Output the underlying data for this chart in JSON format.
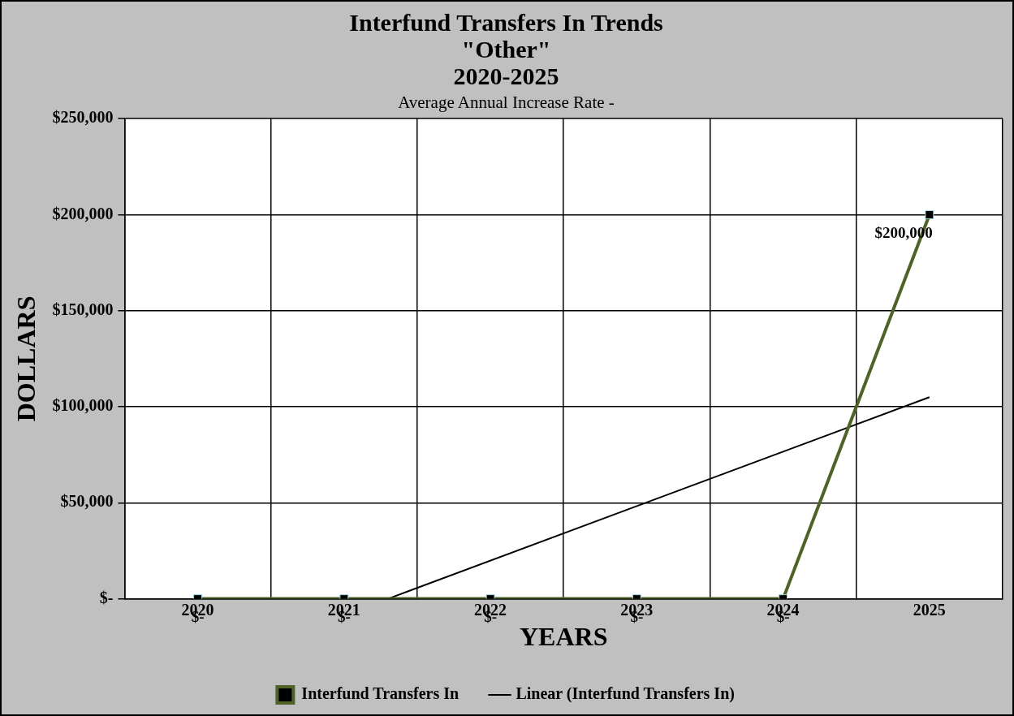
{
  "chart_data": {
    "type": "line",
    "title": "Interfund Transfers In Trends\n\"Other\"\n2020-2025",
    "subtitle": "Average Annual Increase Rate -",
    "xlabel": "YEARS",
    "ylabel": "DOLLARS",
    "x": [
      2020,
      2021,
      2022,
      2023,
      2024,
      2025
    ],
    "series": [
      {
        "name": "Interfund Transfers In",
        "color": "#4f6228",
        "values": [
          0,
          0,
          0,
          0,
          0,
          200000
        ],
        "value_labels": [
          "$-",
          "$-",
          "$-",
          "$-",
          "$-",
          "$200,000"
        ],
        "marker": "square"
      },
      {
        "name": "Linear (Interfund Transfers In)",
        "type": "line",
        "color": "#000000",
        "x": [
          2021.3,
          2025
        ],
        "values": [
          0,
          105000
        ],
        "marker": "none"
      }
    ],
    "xlim": [
      2019.5,
      2025.5
    ],
    "xticks": [
      2020,
      2021,
      2022,
      2023,
      2024,
      2025
    ],
    "ylim": [
      0,
      250000
    ],
    "yticks": [
      {
        "value": 0,
        "label": "$-"
      },
      {
        "value": 50000,
        "label": "$50,000"
      },
      {
        "value": 100000,
        "label": "$100,000"
      },
      {
        "value": 150000,
        "label": "$150,000"
      },
      {
        "value": 200000,
        "label": "$200,000"
      },
      {
        "value": 250000,
        "label": "$250,000"
      }
    ],
    "grid": true,
    "legend": "bottom"
  }
}
